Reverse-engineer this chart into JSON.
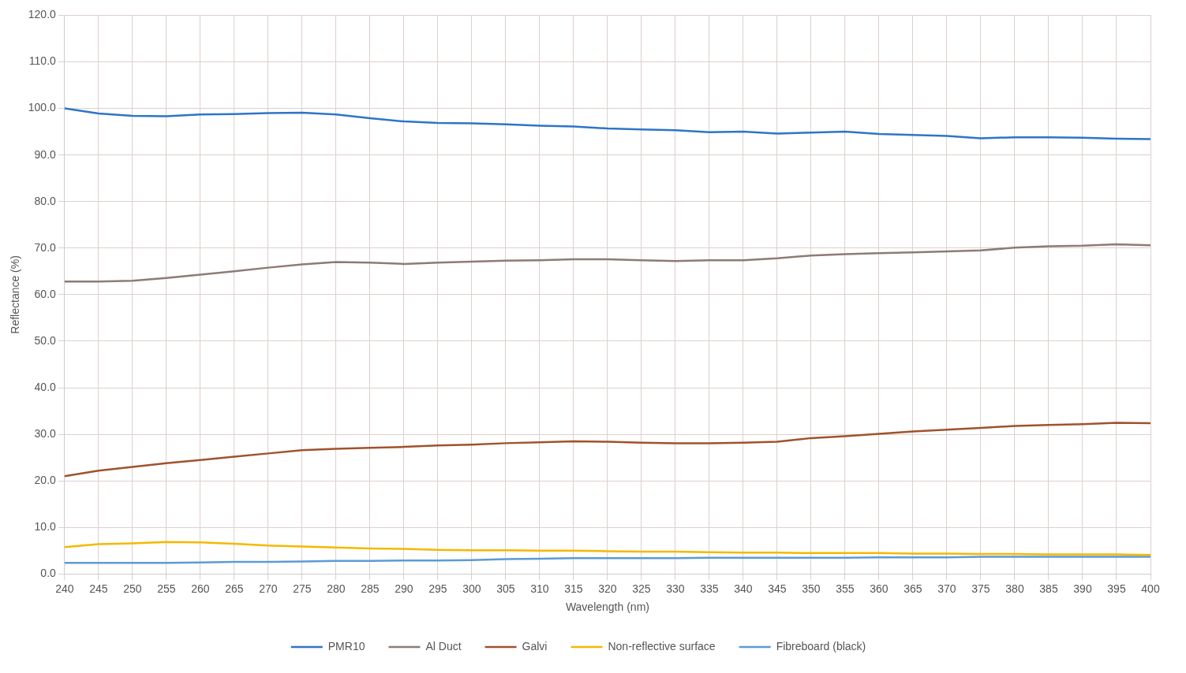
{
  "chart_data": {
    "type": "line",
    "xlabel": "Wavelength (nm)",
    "ylabel": "Reflectance (%)",
    "x": [
      240,
      245,
      250,
      255,
      260,
      265,
      270,
      275,
      280,
      285,
      290,
      295,
      300,
      305,
      310,
      315,
      320,
      325,
      330,
      335,
      340,
      345,
      350,
      355,
      360,
      365,
      370,
      375,
      380,
      385,
      390,
      395,
      400
    ],
    "series": [
      {
        "name": "PMR10",
        "color": "#2e75c8",
        "values": [
          100,
          98.9,
          98.4,
          98.3,
          98.7,
          98.8,
          99.0,
          99.1,
          98.7,
          97.9,
          97.2,
          96.9,
          96.8,
          96.6,
          96.3,
          96.1,
          95.7,
          95.5,
          95.3,
          94.9,
          95.0,
          94.6,
          94.8,
          95.0,
          94.5,
          94.3,
          94.1,
          93.6,
          93.8,
          93.8,
          93.7,
          93.5,
          93.4
        ]
      },
      {
        "name": "Al Duct",
        "color": "#8c7b76",
        "values": [
          62.8,
          62.8,
          63.0,
          63.6,
          64.3,
          65.0,
          65.8,
          66.5,
          67.0,
          66.9,
          66.6,
          66.9,
          67.1,
          67.3,
          67.4,
          67.6,
          67.6,
          67.4,
          67.2,
          67.4,
          67.4,
          67.8,
          68.4,
          68.7,
          68.9,
          69.1,
          69.3,
          69.5,
          70.1,
          70.4,
          70.5,
          70.8,
          70.6
        ]
      },
      {
        "name": "Galvi",
        "color": "#a0522d",
        "values": [
          21.0,
          22.2,
          23.0,
          23.8,
          24.5,
          25.2,
          25.9,
          26.6,
          26.9,
          27.1,
          27.3,
          27.6,
          27.8,
          28.1,
          28.3,
          28.5,
          28.4,
          28.2,
          28.1,
          28.1,
          28.2,
          28.4,
          29.2,
          29.6,
          30.1,
          30.6,
          31.0,
          31.4,
          31.8,
          32.0,
          32.2,
          32.5,
          32.4
        ]
      },
      {
        "name": "Non-reflective surface",
        "color": "#f5b800",
        "values": [
          5.8,
          6.4,
          6.6,
          6.9,
          6.8,
          6.5,
          6.1,
          5.9,
          5.7,
          5.5,
          5.4,
          5.2,
          5.1,
          5.1,
          5.0,
          5.0,
          4.9,
          4.8,
          4.8,
          4.7,
          4.6,
          4.6,
          4.5,
          4.5,
          4.5,
          4.4,
          4.4,
          4.3,
          4.3,
          4.2,
          4.2,
          4.2,
          4.1
        ]
      },
      {
        "name": "Fibreboard (black)",
        "color": "#5b9bd5",
        "values": [
          2.4,
          2.4,
          2.4,
          2.4,
          2.5,
          2.6,
          2.6,
          2.7,
          2.8,
          2.8,
          2.9,
          2.9,
          3.0,
          3.2,
          3.3,
          3.4,
          3.4,
          3.4,
          3.4,
          3.5,
          3.5,
          3.5,
          3.5,
          3.5,
          3.6,
          3.6,
          3.6,
          3.7,
          3.7,
          3.7,
          3.7,
          3.7,
          3.7
        ]
      }
    ],
    "xlim": [
      240,
      400
    ],
    "xticks": [
      240,
      245,
      250,
      255,
      260,
      265,
      270,
      275,
      280,
      285,
      290,
      295,
      300,
      305,
      310,
      315,
      320,
      325,
      330,
      335,
      340,
      345,
      350,
      355,
      360,
      365,
      370,
      375,
      380,
      385,
      390,
      395,
      400
    ],
    "ylim": [
      0,
      120
    ],
    "yticks": [
      {
        "value": 0,
        "label": "0.0"
      },
      {
        "value": 10,
        "label": "10.0"
      },
      {
        "value": 20,
        "label": "20.0"
      },
      {
        "value": 30,
        "label": "30.0"
      },
      {
        "value": 40,
        "label": "40.0"
      },
      {
        "value": 50,
        "label": "50.0"
      },
      {
        "value": 60,
        "label": "60.0"
      },
      {
        "value": 70,
        "label": "70.0"
      },
      {
        "value": 80,
        "label": "80.0"
      },
      {
        "value": 90,
        "label": "90.0"
      },
      {
        "value": 100,
        "label": "100.0"
      },
      {
        "value": 110,
        "label": "110.0"
      },
      {
        "value": 120,
        "label": "120.0"
      }
    ],
    "grid": true,
    "legend": "bottom",
    "marker": "none",
    "line_style": "solid"
  }
}
